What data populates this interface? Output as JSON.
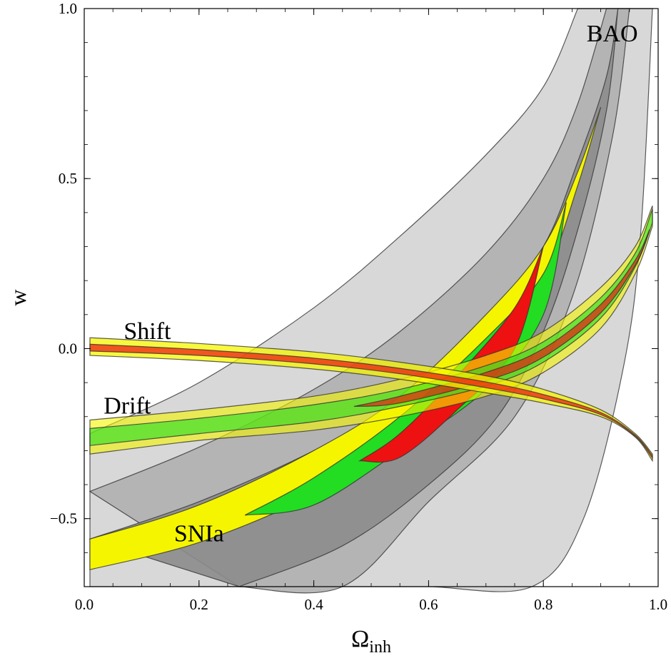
{
  "chart_data": {
    "type": "area",
    "xlabel": "Ω",
    "xlabel_sub": "inh",
    "ylabel": "w",
    "xlim": [
      0.0,
      1.0
    ],
    "ylim": [
      -0.7,
      1.0
    ],
    "xticks": [
      0.0,
      0.2,
      0.4,
      0.6,
      0.8,
      1.0
    ],
    "xtick_labels": [
      "0.0",
      "0.2",
      "0.4",
      "0.6",
      "0.8",
      "1.0"
    ],
    "yticks": [
      -0.5,
      0.0,
      0.5,
      1.0
    ],
    "ytick_labels": [
      "−0.5",
      "0.0",
      "0.5",
      "1.0"
    ],
    "grid": false,
    "colors": {
      "bao_outer": "#d4d4d4",
      "bao_mid": "#b0b0b0",
      "bao_inner": "#8c8c8c",
      "sigma3": "#f5f500",
      "sigma2": "#22dd22",
      "sigma1": "#ee1111"
    },
    "labels": [
      {
        "text": "BAO",
        "x": 0.92,
        "y": 0.92
      },
      {
        "text": "Shift",
        "x": 0.11,
        "y": 0.045
      },
      {
        "text": "Drift",
        "x": 0.075,
        "y": -0.175
      },
      {
        "text": "SNIa",
        "x": 0.2,
        "y": -0.55
      }
    ],
    "series": [
      {
        "group": "BAO",
        "level": "outer",
        "upper": [
          [
            0.01,
            -0.25
          ],
          [
            0.2,
            -0.1
          ],
          [
            0.4,
            0.12
          ],
          [
            0.55,
            0.33
          ],
          [
            0.7,
            0.57
          ],
          [
            0.8,
            0.77
          ],
          [
            0.86,
            1.0
          ]
        ],
        "lower": [
          [
            0.01,
            -0.7
          ],
          [
            0.48,
            -0.7
          ],
          [
            0.6,
            -0.7
          ],
          [
            0.78,
            -0.7
          ],
          [
            0.87,
            -0.5
          ],
          [
            0.94,
            -0.05
          ],
          [
            0.97,
            0.35
          ],
          [
            0.99,
            1.0
          ]
        ]
      },
      {
        "group": "BAO",
        "level": "mid",
        "upper": [
          [
            0.01,
            -0.42
          ],
          [
            0.2,
            -0.29
          ],
          [
            0.4,
            -0.12
          ],
          [
            0.55,
            0.05
          ],
          [
            0.7,
            0.28
          ],
          [
            0.8,
            0.5
          ],
          [
            0.86,
            0.72
          ],
          [
            0.91,
            1.0
          ]
        ],
        "lower": [
          [
            0.27,
            -0.7
          ],
          [
            0.45,
            -0.7
          ],
          [
            0.6,
            -0.45
          ],
          [
            0.75,
            -0.2
          ],
          [
            0.85,
            0.15
          ],
          [
            0.92,
            0.62
          ],
          [
            0.95,
            1.0
          ]
        ]
      },
      {
        "group": "BAO",
        "level": "inner",
        "upper": [
          [
            0.01,
            -0.56
          ],
          [
            0.2,
            -0.45
          ],
          [
            0.4,
            -0.3
          ],
          [
            0.55,
            -0.15
          ],
          [
            0.7,
            0.08
          ],
          [
            0.8,
            0.3
          ],
          [
            0.86,
            0.55
          ],
          [
            0.91,
            0.8
          ],
          [
            0.93,
            1.0
          ]
        ],
        "lower": [
          [
            0.27,
            -0.7
          ],
          [
            0.45,
            -0.58
          ],
          [
            0.6,
            -0.4
          ],
          [
            0.72,
            -0.2
          ],
          [
            0.8,
            0.05
          ],
          [
            0.86,
            0.35
          ],
          [
            0.91,
            0.7
          ],
          [
            0.93,
            1.0
          ]
        ]
      },
      {
        "group": "SNIa",
        "level": "3sigma",
        "upper": [
          [
            0.01,
            -0.56
          ],
          [
            0.2,
            -0.46
          ],
          [
            0.4,
            -0.3
          ],
          [
            0.55,
            -0.14
          ],
          [
            0.7,
            0.1
          ],
          [
            0.8,
            0.3
          ],
          [
            0.86,
            0.52
          ],
          [
            0.9,
            0.71
          ]
        ],
        "lower": [
          [
            0.01,
            -0.65
          ],
          [
            0.2,
            -0.57
          ],
          [
            0.4,
            -0.43
          ],
          [
            0.55,
            -0.28
          ],
          [
            0.7,
            -0.05
          ],
          [
            0.8,
            0.2
          ],
          [
            0.86,
            0.48
          ],
          [
            0.9,
            0.71
          ]
        ]
      },
      {
        "group": "SNIa",
        "level": "2sigma",
        "upper": [
          [
            0.28,
            -0.49
          ],
          [
            0.4,
            -0.38
          ],
          [
            0.55,
            -0.2
          ],
          [
            0.7,
            0.03
          ],
          [
            0.8,
            0.22
          ],
          [
            0.84,
            0.43
          ]
        ],
        "lower": [
          [
            0.28,
            -0.49
          ],
          [
            0.4,
            -0.46
          ],
          [
            0.55,
            -0.3
          ],
          [
            0.7,
            -0.12
          ],
          [
            0.8,
            0.1
          ],
          [
            0.84,
            0.43
          ]
        ]
      },
      {
        "group": "SNIa",
        "level": "1sigma",
        "upper": [
          [
            0.48,
            -0.33
          ],
          [
            0.55,
            -0.25
          ],
          [
            0.65,
            -0.08
          ],
          [
            0.75,
            0.12
          ],
          [
            0.8,
            0.3
          ]
        ],
        "lower": [
          [
            0.48,
            -0.33
          ],
          [
            0.55,
            -0.32
          ],
          [
            0.65,
            -0.18
          ],
          [
            0.75,
            0.0
          ],
          [
            0.8,
            0.3
          ]
        ]
      },
      {
        "group": "Shift",
        "level": "3sigma",
        "upper": [
          [
            0.01,
            0.032
          ],
          [
            0.2,
            0.015
          ],
          [
            0.4,
            -0.01
          ],
          [
            0.55,
            -0.04
          ],
          [
            0.7,
            -0.08
          ],
          [
            0.8,
            -0.12
          ],
          [
            0.9,
            -0.18
          ],
          [
            0.96,
            -0.25
          ],
          [
            0.99,
            -0.31
          ]
        ],
        "lower": [
          [
            0.01,
            -0.02
          ],
          [
            0.2,
            -0.035
          ],
          [
            0.4,
            -0.06
          ],
          [
            0.55,
            -0.09
          ],
          [
            0.7,
            -0.13
          ],
          [
            0.8,
            -0.16
          ],
          [
            0.9,
            -0.2
          ],
          [
            0.96,
            -0.26
          ],
          [
            0.99,
            -0.33
          ]
        ]
      },
      {
        "group": "Shift",
        "level": "1sigma",
        "upper": [
          [
            0.01,
            0.013
          ],
          [
            0.2,
            -0.003
          ],
          [
            0.4,
            -0.028
          ],
          [
            0.55,
            -0.058
          ],
          [
            0.7,
            -0.098
          ],
          [
            0.8,
            -0.135
          ],
          [
            0.9,
            -0.188
          ],
          [
            0.96,
            -0.254
          ],
          [
            0.99,
            -0.315
          ]
        ],
        "lower": [
          [
            0.01,
            -0.007
          ],
          [
            0.2,
            -0.02
          ],
          [
            0.4,
            -0.045
          ],
          [
            0.55,
            -0.074
          ],
          [
            0.7,
            -0.115
          ],
          [
            0.8,
            -0.148
          ],
          [
            0.9,
            -0.194
          ],
          [
            0.96,
            -0.258
          ],
          [
            0.99,
            -0.322
          ]
        ]
      },
      {
        "group": "Drift",
        "level": "3sigma",
        "upper": [
          [
            0.01,
            -0.21
          ],
          [
            0.2,
            -0.18
          ],
          [
            0.4,
            -0.14
          ],
          [
            0.55,
            -0.09
          ],
          [
            0.7,
            -0.02
          ],
          [
            0.8,
            0.05
          ],
          [
            0.9,
            0.18
          ],
          [
            0.96,
            0.3
          ],
          [
            0.99,
            0.42
          ]
        ],
        "lower": [
          [
            0.01,
            -0.31
          ],
          [
            0.2,
            -0.27
          ],
          [
            0.4,
            -0.24
          ],
          [
            0.55,
            -0.2
          ],
          [
            0.7,
            -0.14
          ],
          [
            0.8,
            -0.07
          ],
          [
            0.9,
            0.06
          ],
          [
            0.96,
            0.22
          ],
          [
            0.99,
            0.36
          ]
        ]
      },
      {
        "group": "Drift",
        "level": "2sigma",
        "upper": [
          [
            0.01,
            -0.235
          ],
          [
            0.2,
            -0.205
          ],
          [
            0.4,
            -0.165
          ],
          [
            0.55,
            -0.12
          ],
          [
            0.7,
            -0.05
          ],
          [
            0.8,
            0.02
          ],
          [
            0.9,
            0.15
          ],
          [
            0.96,
            0.28
          ],
          [
            0.99,
            0.41
          ]
        ],
        "lower": [
          [
            0.01,
            -0.285
          ],
          [
            0.2,
            -0.25
          ],
          [
            0.4,
            -0.215
          ],
          [
            0.55,
            -0.17
          ],
          [
            0.7,
            -0.11
          ],
          [
            0.8,
            -0.04
          ],
          [
            0.9,
            0.09
          ],
          [
            0.96,
            0.24
          ],
          [
            0.99,
            0.37
          ]
        ]
      },
      {
        "group": "Drift",
        "level": "1sigma",
        "upper": [
          [
            0.47,
            -0.17
          ],
          [
            0.55,
            -0.14
          ],
          [
            0.7,
            -0.07
          ],
          [
            0.8,
            0.0
          ],
          [
            0.9,
            0.13
          ],
          [
            0.96,
            0.26
          ],
          [
            0.985,
            0.35
          ]
        ],
        "lower": [
          [
            0.47,
            -0.17
          ],
          [
            0.55,
            -0.16
          ],
          [
            0.7,
            -0.095
          ],
          [
            0.8,
            -0.025
          ],
          [
            0.9,
            0.105
          ],
          [
            0.96,
            0.245
          ],
          [
            0.985,
            0.35
          ]
        ]
      }
    ]
  }
}
